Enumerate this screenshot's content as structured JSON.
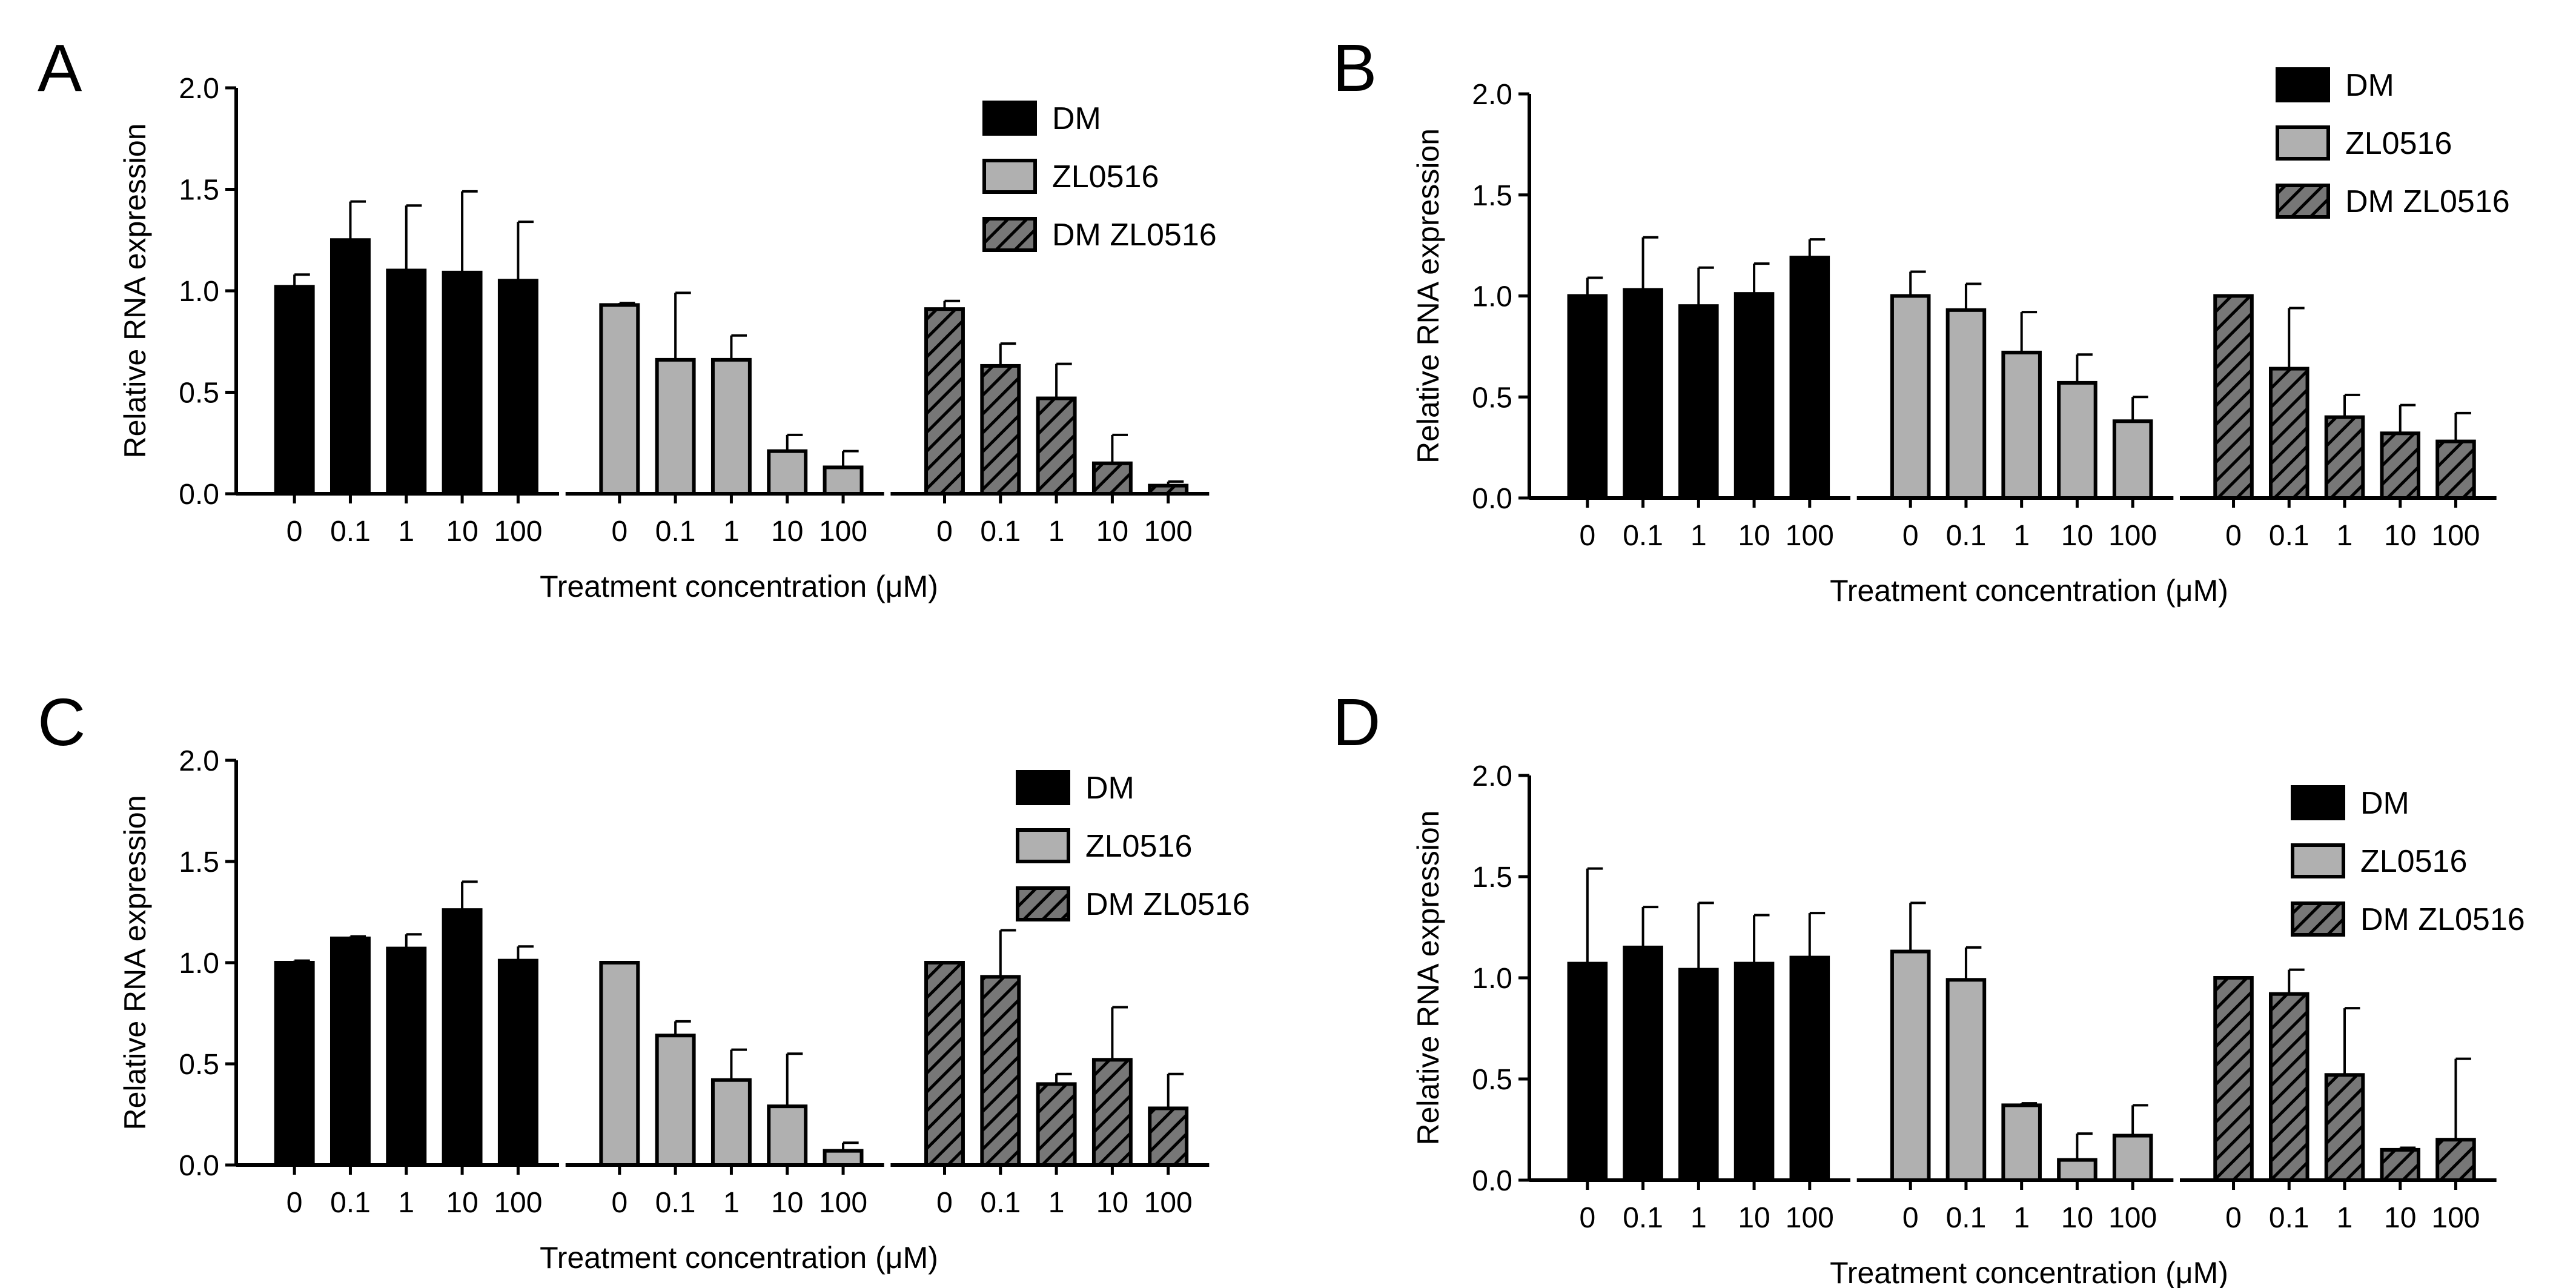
{
  "colors": {
    "DM": "#000000",
    "ZL0516": "#b0b0b0",
    "DM ZL0516": "#777777",
    "stroke": "#000000"
  },
  "chart_data": [
    {
      "panel": "A",
      "type": "bar",
      "xlabel": "Treatment concentration (μM)",
      "ylabel": "Relative RNA expression",
      "ylim": [
        0,
        2.0
      ],
      "yticks": [
        "0.0",
        "0.5",
        "1.0",
        "1.5",
        "2.0"
      ],
      "categories": [
        "0",
        "0.1",
        "1",
        "10",
        "100"
      ],
      "legend_position": "top-right",
      "series": [
        {
          "name": "DM",
          "pattern": "solid-black",
          "values": [
            1.02,
            1.25,
            1.1,
            1.09,
            1.05
          ],
          "errors": [
            0.06,
            0.19,
            0.32,
            0.4,
            0.29
          ]
        },
        {
          "name": "ZL0516",
          "pattern": "solid-gray",
          "values": [
            0.93,
            0.66,
            0.66,
            0.21,
            0.13
          ],
          "errors": [
            0.01,
            0.33,
            0.12,
            0.08,
            0.08
          ]
        },
        {
          "name": "DM ZL0516",
          "pattern": "hatched",
          "values": [
            0.91,
            0.63,
            0.47,
            0.15,
            0.04
          ],
          "errors": [
            0.04,
            0.11,
            0.17,
            0.14,
            0.02
          ]
        }
      ]
    },
    {
      "panel": "B",
      "type": "bar",
      "xlabel": "Treatment concentration (μM)",
      "ylabel": "Relative RNA expression",
      "ylim": [
        0,
        2.0
      ],
      "yticks": [
        "0.0",
        "0.5",
        "1.0",
        "1.5",
        "2.0"
      ],
      "categories": [
        "0",
        "0.1",
        "1",
        "10",
        "100"
      ],
      "legend_position": "top-right",
      "series": [
        {
          "name": "DM",
          "pattern": "solid-black",
          "values": [
            1.0,
            1.03,
            0.95,
            1.01,
            1.19
          ],
          "errors": [
            0.09,
            0.26,
            0.19,
            0.15,
            0.09
          ]
        },
        {
          "name": "ZL0516",
          "pattern": "solid-gray",
          "values": [
            1.0,
            0.93,
            0.72,
            0.57,
            0.38
          ],
          "errors": [
            0.12,
            0.13,
            0.2,
            0.14,
            0.12
          ]
        },
        {
          "name": "DM ZL0516",
          "pattern": "hatched",
          "values": [
            1.0,
            0.64,
            0.4,
            0.32,
            0.28
          ],
          "errors": [
            0.0,
            0.3,
            0.11,
            0.14,
            0.14
          ]
        }
      ]
    },
    {
      "panel": "C",
      "type": "bar",
      "xlabel": "Treatment concentration (μM)",
      "ylabel": "Relative RNA expression",
      "ylim": [
        0,
        2.0
      ],
      "yticks": [
        "0.0",
        "0.5",
        "1.0",
        "1.5",
        "2.0"
      ],
      "categories": [
        "0",
        "0.1",
        "1",
        "10",
        "100"
      ],
      "legend_position": "top-right",
      "series": [
        {
          "name": "DM",
          "pattern": "solid-black",
          "values": [
            1.0,
            1.12,
            1.07,
            1.26,
            1.01
          ],
          "errors": [
            0.01,
            0.01,
            0.07,
            0.14,
            0.07
          ]
        },
        {
          "name": "ZL0516",
          "pattern": "solid-gray",
          "values": [
            1.0,
            0.64,
            0.42,
            0.29,
            0.07
          ],
          "errors": [
            0.0,
            0.07,
            0.15,
            0.26,
            0.04
          ]
        },
        {
          "name": "DM ZL0516",
          "pattern": "hatched",
          "values": [
            1.0,
            0.93,
            0.4,
            0.52,
            0.28
          ],
          "errors": [
            0.0,
            0.23,
            0.05,
            0.26,
            0.17
          ]
        }
      ]
    },
    {
      "panel": "D",
      "type": "bar",
      "xlabel": "Treatment concentration (μM)",
      "ylabel": "Relative RNA expression",
      "ylim": [
        0,
        2.0
      ],
      "yticks": [
        "0.0",
        "0.5",
        "1.0",
        "1.5",
        "2.0"
      ],
      "categories": [
        "0",
        "0.1",
        "1",
        "10",
        "100"
      ],
      "legend_position": "top-right",
      "series": [
        {
          "name": "DM",
          "pattern": "solid-black",
          "values": [
            1.07,
            1.15,
            1.04,
            1.07,
            1.1
          ],
          "errors": [
            0.47,
            0.2,
            0.33,
            0.24,
            0.22
          ]
        },
        {
          "name": "ZL0516",
          "pattern": "solid-gray",
          "values": [
            1.13,
            0.99,
            0.37,
            0.1,
            0.22
          ],
          "errors": [
            0.24,
            0.16,
            0.01,
            0.13,
            0.15
          ]
        },
        {
          "name": "DM ZL0516",
          "pattern": "hatched",
          "values": [
            1.0,
            0.92,
            0.52,
            0.15,
            0.2
          ],
          "errors": [
            0.0,
            0.12,
            0.33,
            0.01,
            0.4
          ]
        }
      ]
    }
  ]
}
